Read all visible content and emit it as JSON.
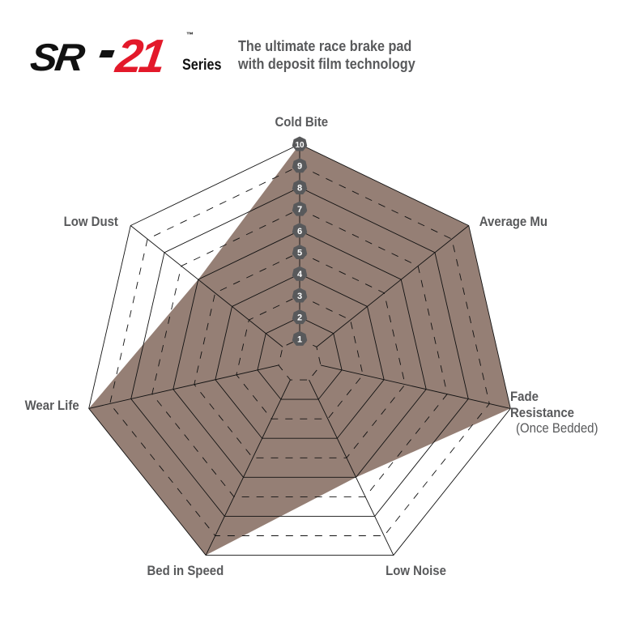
{
  "logo": {
    "text_sr": "SR",
    "text_21": "21",
    "series": "Series",
    "tm": "™",
    "brand_red": "#e3192a"
  },
  "tagline": {
    "line1": "The ultimate race brake pad",
    "line2": "with deposit film technology"
  },
  "chart_data": {
    "type": "radar",
    "title": "",
    "axes": [
      "Cold Bite",
      "Average Mu",
      "Fade Resistance",
      "Low Noise",
      "Bed in Speed",
      "Wear Life",
      "Low Dust"
    ],
    "axis_sublabels": {
      "Fade Resistance": "(Once Bedded)"
    },
    "scale_min": 0,
    "scale_max": 10,
    "tick_labels": [
      "1",
      "2",
      "3",
      "4",
      "5",
      "6",
      "7",
      "8",
      "9",
      "10"
    ],
    "series": [
      {
        "values": [
          10,
          10,
          10,
          6,
          10,
          10,
          6
        ],
        "color": "#957f75"
      }
    ],
    "grid": true,
    "grid_style": "solid on even levels, dashed on odd levels"
  }
}
